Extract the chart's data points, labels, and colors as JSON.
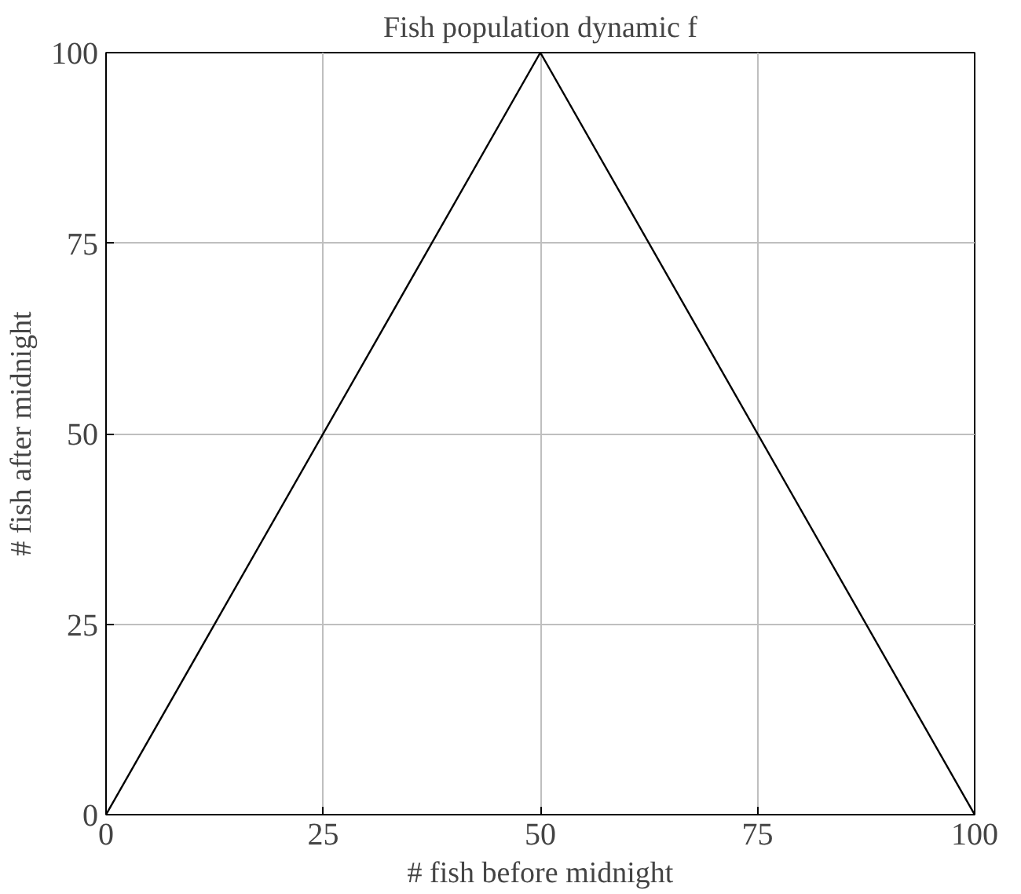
{
  "chart_data": {
    "type": "line",
    "title": "Fish population dynamic f",
    "xlabel": "# fish before midnight",
    "ylabel": "# fish after midnight",
    "x": [
      0,
      50,
      100
    ],
    "series": [
      {
        "color": "#000000",
        "values": [
          0,
          100,
          0
        ]
      }
    ],
    "xlim": [
      0,
      100
    ],
    "ylim": [
      0,
      100
    ],
    "xticks": [
      0,
      25,
      50,
      75,
      100
    ],
    "yticks": [
      0,
      25,
      50,
      75,
      100
    ],
    "grid": true,
    "marker": "none",
    "line_style": "solid"
  }
}
